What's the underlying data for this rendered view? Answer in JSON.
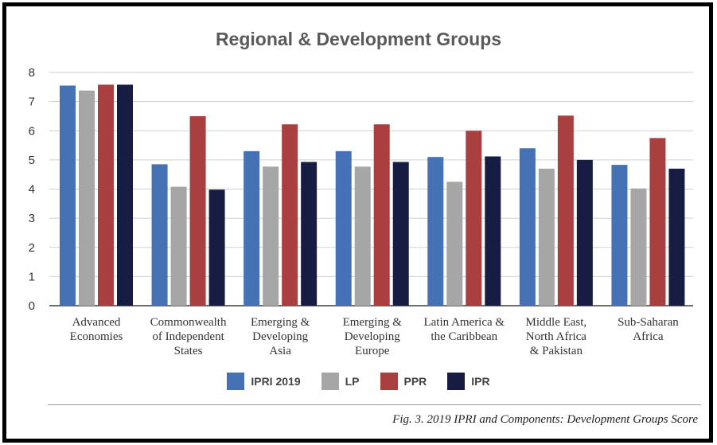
{
  "chart_data": {
    "type": "bar",
    "title": "Regional & Development Groups",
    "categories": [
      [
        "Advanced",
        "Economies"
      ],
      [
        "Commonwealth",
        "of Independent",
        "States"
      ],
      [
        "Emerging &",
        "Developing",
        "Asia"
      ],
      [
        "Emerging &",
        "Developing",
        "Europe"
      ],
      [
        "Latin America &",
        "the Caribbean"
      ],
      [
        "Middle East,",
        "North Africa",
        "& Pakistan"
      ],
      [
        "Sub-Saharan",
        "Africa"
      ]
    ],
    "series": [
      {
        "name": "IPRI 2019",
        "color": "#4472b4",
        "values": [
          7.55,
          4.85,
          5.3,
          5.3,
          5.1,
          5.4,
          4.83
        ]
      },
      {
        "name": "LP",
        "color": "#a6a6a6",
        "values": [
          7.38,
          4.08,
          4.77,
          4.77,
          4.25,
          4.7,
          4.02
        ]
      },
      {
        "name": "PPR",
        "color": "#aa3f3f",
        "values": [
          7.58,
          6.5,
          6.22,
          6.22,
          6.0,
          6.52,
          5.75
        ]
      },
      {
        "name": "IPR",
        "color": "#171c42",
        "values": [
          7.58,
          3.98,
          4.93,
          4.93,
          5.12,
          5.0,
          4.7
        ]
      }
    ],
    "ylim": [
      0,
      8
    ],
    "yticks": [
      "0",
      "1",
      "2",
      "3",
      "4",
      "5",
      "6",
      "7",
      "8"
    ],
    "grid": true,
    "legend_position": "bottom"
  },
  "caption": "Fig. 3. 2019 IPRI and Components: Development Groups Score"
}
